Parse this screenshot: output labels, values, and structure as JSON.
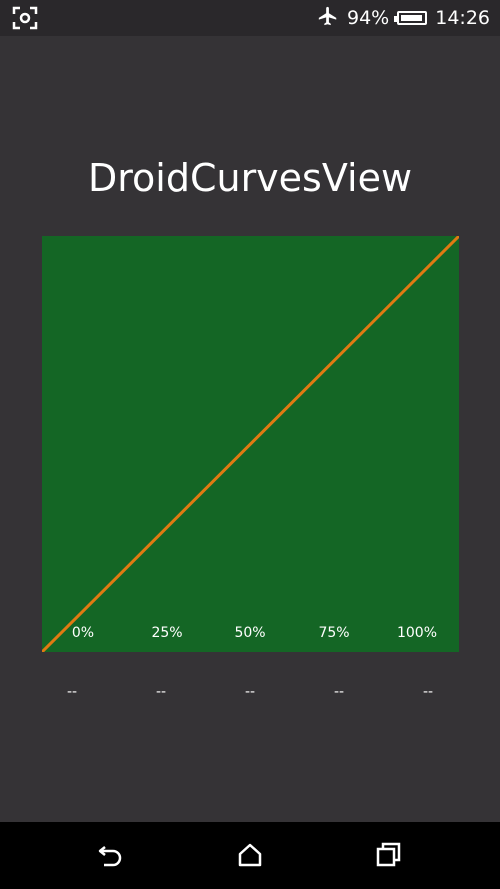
{
  "status_bar": {
    "battery_percent": "94%",
    "battery_level": 0.94,
    "time": "14:26",
    "icons": [
      "screenshot-icon",
      "airplane-mode-icon",
      "battery-icon"
    ]
  },
  "app": {
    "title": "DroidCurvesView"
  },
  "chart_data": {
    "type": "line",
    "title": "",
    "x_ticks": [
      "0%",
      "25%",
      "50%",
      "75%",
      "100%"
    ],
    "series": [
      {
        "values": [
          [
            0,
            0
          ],
          [
            1,
            1
          ]
        ]
      }
    ],
    "xlim": [
      0,
      1
    ],
    "ylim": [
      0,
      1
    ],
    "background_color": "#146625",
    "line_color": "#e07a12"
  },
  "value_readouts": [
    "--",
    "--",
    "--",
    "--",
    "--"
  ],
  "nav_bar": {
    "buttons": [
      "back-icon",
      "home-icon",
      "recents-icon"
    ]
  }
}
